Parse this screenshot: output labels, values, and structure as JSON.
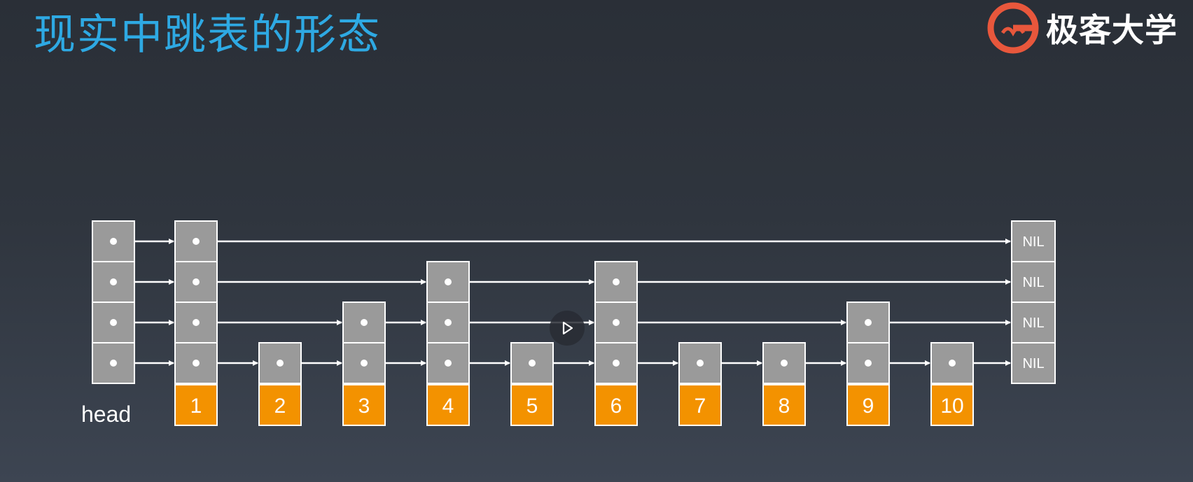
{
  "slide": {
    "title": "现实中跳表的形态"
  },
  "brand": {
    "name": "极客大学",
    "logo_icon": "geekbang-logo-icon",
    "logo_color": "#e8573c"
  },
  "diagram": {
    "head_label": "head",
    "nil_label": "NIL",
    "colors": {
      "node_fill": "#9a9a9a",
      "node_border": "#ffffff",
      "key_fill": "#f39200",
      "arrow": "#ffffff"
    },
    "head_levels": 4,
    "nil_levels": 4,
    "nodes": [
      {
        "key": "1",
        "levels": 4
      },
      {
        "key": "2",
        "levels": 1
      },
      {
        "key": "3",
        "levels": 2
      },
      {
        "key": "4",
        "levels": 3
      },
      {
        "key": "5",
        "levels": 1
      },
      {
        "key": "6",
        "levels": 3
      },
      {
        "key": "7",
        "levels": 1
      },
      {
        "key": "8",
        "levels": 1
      },
      {
        "key": "9",
        "levels": 2
      },
      {
        "key": "10",
        "levels": 1
      }
    ]
  },
  "player": {
    "play_icon": "play-icon"
  }
}
